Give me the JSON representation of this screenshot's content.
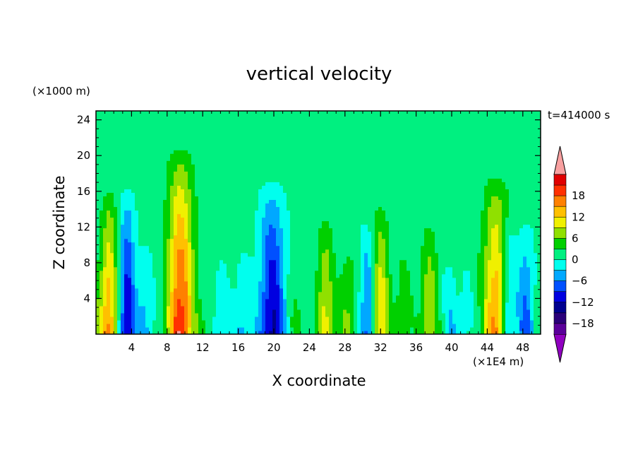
{
  "chart_data": {
    "type": "heatmap",
    "title": "vertical velocity",
    "xlabel": "X coordinate",
    "ylabel": "Z coordinate",
    "x_units": "(×1E4 m)",
    "y_units": "(×1000 m)",
    "time_label": "t=414000 s",
    "xlim": [
      0,
      50
    ],
    "ylim": [
      0,
      25
    ],
    "x_ticks": [
      "4",
      "8",
      "12",
      "16",
      "20",
      "24",
      "28",
      "32",
      "36",
      "40",
      "44",
      "48"
    ],
    "y_ticks": [
      "4",
      "8",
      "12",
      "16",
      "20",
      "24"
    ],
    "colorbar": {
      "levels": [
        -21,
        -18,
        -15,
        -12,
        -9,
        -6,
        -3,
        0,
        3,
        6,
        9,
        12,
        15,
        18,
        21
      ],
      "labeled_levels": [
        "18",
        "12",
        "6",
        "0",
        "−6",
        "−12",
        "−18"
      ],
      "colors": [
        "#5a009a",
        "#2a007a",
        "#00008f",
        "#0000e0",
        "#0050ff",
        "#00a8ff",
        "#00ffee",
        "#00f080",
        "#00d000",
        "#90e000",
        "#f0f000",
        "#ffc000",
        "#ff8000",
        "#ff3000",
        "#e00000"
      ],
      "under_color": "#9000c0",
      "over_color": "#f8a0a0"
    },
    "columns": [
      {
        "x": 0.5,
        "amp": 4
      },
      {
        "x": 1.5,
        "amp": 14
      },
      {
        "x": 3.5,
        "amp": -14
      },
      {
        "x": 5.5,
        "amp": -6
      },
      {
        "x": 9.5,
        "amp": 20
      },
      {
        "x": 12.5,
        "amp": 2
      },
      {
        "x": 14.0,
        "amp": -4
      },
      {
        "x": 16.5,
        "amp": -5
      },
      {
        "x": 19.8,
        "amp": -15
      },
      {
        "x": 22.5,
        "amp": 3
      },
      {
        "x": 25.8,
        "amp": 10
      },
      {
        "x": 28.3,
        "amp": 6
      },
      {
        "x": 30.5,
        "amp": -9
      },
      {
        "x": 32.0,
        "amp": 12
      },
      {
        "x": 34.5,
        "amp": 5
      },
      {
        "x": 37.5,
        "amp": 9
      },
      {
        "x": 39.8,
        "amp": -4
      },
      {
        "x": 41.5,
        "amp": -3
      },
      {
        "x": 45.0,
        "amp": 16
      },
      {
        "x": 46.3,
        "amp": -10
      },
      {
        "x": 48.3,
        "amp": -9
      }
    ]
  }
}
